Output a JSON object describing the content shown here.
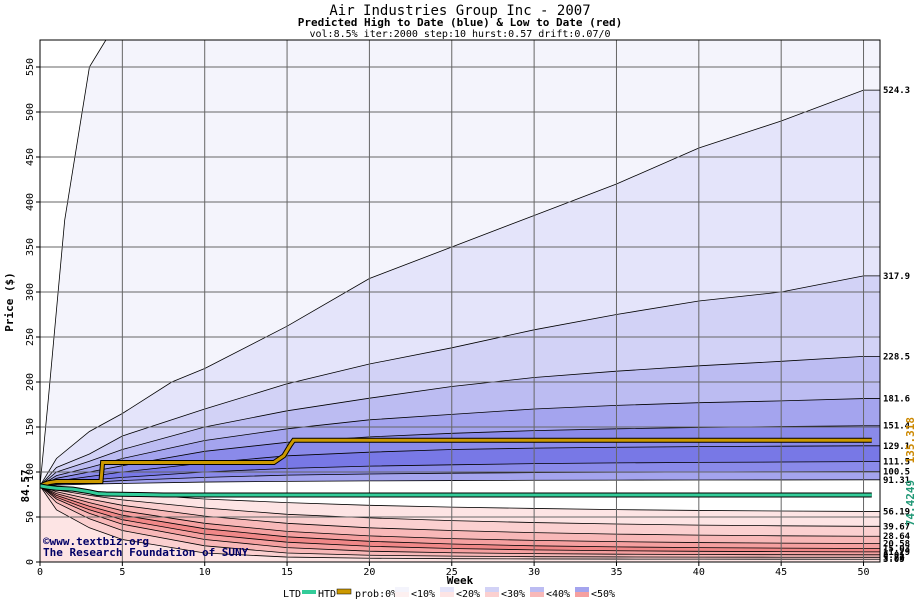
{
  "chart_data": {
    "type": "area",
    "title": "Air Industries Group Inc - 2007",
    "subtitle": "Predicted High to Date (blue) &  Low to Date (red)",
    "params": "vol:8.5% iter:2000 step:10 hurst:0.57 drift:0.07/0",
    "xlabel": "Week",
    "ylabel": "Price ($)",
    "xlim": [
      0,
      51
    ],
    "ylim": [
      0,
      580
    ],
    "xticks": [
      0,
      5,
      10,
      15,
      20,
      25,
      30,
      35,
      40,
      45,
      50
    ],
    "yticks": [
      0,
      50,
      100,
      150,
      200,
      250,
      300,
      350,
      400,
      450,
      500,
      550
    ],
    "grid": true,
    "start_price": "84.57",
    "start_value": 84.57,
    "high_bands": [
      {
        "name": "high-prob-0",
        "final": 600,
        "color": "#f4f4fc",
        "curve": [
          [
            0,
            84.57
          ],
          [
            0.5,
            180
          ],
          [
            1.5,
            380
          ],
          [
            3,
            550
          ],
          [
            4,
            580
          ],
          [
            51,
            580
          ]
        ]
      },
      {
        "name": "high-prob-10",
        "final": 524.3,
        "label": "524.3",
        "color": "#e4e4fa",
        "curve": [
          [
            0,
            84.57
          ],
          [
            1,
            115
          ],
          [
            3,
            145
          ],
          [
            5,
            165
          ],
          [
            8,
            200
          ],
          [
            10,
            215
          ],
          [
            15,
            262
          ],
          [
            20,
            315
          ],
          [
            25,
            350
          ],
          [
            30,
            385
          ],
          [
            35,
            420
          ],
          [
            40,
            460
          ],
          [
            45,
            490
          ],
          [
            50,
            524.3
          ]
        ]
      },
      {
        "name": "high-prob-20",
        "final": 317.9,
        "label": "317.9",
        "color": "#d2d2f6",
        "curve": [
          [
            0,
            84.57
          ],
          [
            1,
            105
          ],
          [
            3,
            120
          ],
          [
            5,
            140
          ],
          [
            10,
            170
          ],
          [
            15,
            198
          ],
          [
            20,
            220
          ],
          [
            25,
            238
          ],
          [
            30,
            258
          ],
          [
            35,
            275
          ],
          [
            40,
            290
          ],
          [
            45,
            300
          ],
          [
            50,
            317.9
          ]
        ]
      },
      {
        "name": "high-prob-30",
        "final": 228.5,
        "label": "228.5",
        "color": "#bcbcf2",
        "curve": [
          [
            0,
            84.57
          ],
          [
            1,
            100
          ],
          [
            3,
            112
          ],
          [
            5,
            125
          ],
          [
            10,
            150
          ],
          [
            15,
            168
          ],
          [
            20,
            182
          ],
          [
            25,
            195
          ],
          [
            30,
            205
          ],
          [
            35,
            212
          ],
          [
            40,
            218
          ],
          [
            45,
            223
          ],
          [
            50,
            228.5
          ]
        ]
      },
      {
        "name": "high-prob-40",
        "final": 181.6,
        "label": "181.6",
        "color": "#a4a4ee",
        "curve": [
          [
            0,
            84.57
          ],
          [
            1,
            96
          ],
          [
            3,
            105
          ],
          [
            5,
            115
          ],
          [
            10,
            135
          ],
          [
            15,
            148
          ],
          [
            20,
            158
          ],
          [
            25,
            164
          ],
          [
            30,
            170
          ],
          [
            35,
            174
          ],
          [
            40,
            177
          ],
          [
            45,
            179
          ],
          [
            50,
            181.6
          ]
        ]
      },
      {
        "name": "high-prob-50",
        "final": 151.4,
        "label": "151.4",
        "color": "#8a8aea",
        "curve": [
          [
            0,
            84.57
          ],
          [
            1,
            93
          ],
          [
            3,
            100
          ],
          [
            5,
            107
          ],
          [
            10,
            123
          ],
          [
            15,
            133
          ],
          [
            20,
            139
          ],
          [
            25,
            143
          ],
          [
            30,
            146
          ],
          [
            35,
            148
          ],
          [
            40,
            149.5
          ],
          [
            45,
            150.5
          ],
          [
            50,
            151.4
          ]
        ]
      },
      {
        "name": "high-prob-60",
        "final": 129.1,
        "label": "129.1",
        "color": "#7878e6",
        "curve": [
          [
            0,
            84.57
          ],
          [
            1,
            90
          ],
          [
            3,
            95
          ],
          [
            5,
            100
          ],
          [
            10,
            110
          ],
          [
            15,
            118
          ],
          [
            20,
            122
          ],
          [
            25,
            125
          ],
          [
            30,
            126.5
          ],
          [
            35,
            127.5
          ],
          [
            40,
            128.2
          ],
          [
            45,
            128.7
          ],
          [
            50,
            129.1
          ]
        ]
      },
      {
        "name": "high-prob-70",
        "final": 111.5,
        "label": "111.5",
        "color": "#8a8aea",
        "curve": [
          [
            0,
            84.57
          ],
          [
            1,
            88
          ],
          [
            3,
            91
          ],
          [
            5,
            94
          ],
          [
            10,
            100
          ],
          [
            15,
            104
          ],
          [
            20,
            106.5
          ],
          [
            25,
            108
          ],
          [
            30,
            109.3
          ],
          [
            35,
            110.1
          ],
          [
            40,
            110.7
          ],
          [
            45,
            111.1
          ],
          [
            50,
            111.5
          ]
        ]
      },
      {
        "name": "high-prob-80",
        "final": 100.5,
        "label": "100.5",
        "color": "#a4a4ee",
        "curve": [
          [
            0,
            84.57
          ],
          [
            1,
            86.5
          ],
          [
            3,
            88.5
          ],
          [
            5,
            90.5
          ],
          [
            10,
            94
          ],
          [
            15,
            96.5
          ],
          [
            20,
            97.8
          ],
          [
            25,
            98.7
          ],
          [
            30,
            99.3
          ],
          [
            35,
            99.7
          ],
          [
            40,
            100
          ],
          [
            45,
            100.3
          ],
          [
            50,
            100.5
          ]
        ]
      },
      {
        "name": "high-prob-90",
        "final": 91.31,
        "label": "91.31",
        "color": "#d2d2f6",
        "curve": [
          [
            0,
            84.57
          ],
          [
            1,
            85.5
          ],
          [
            3,
            86.5
          ],
          [
            5,
            87.3
          ],
          [
            10,
            88.8
          ],
          [
            15,
            89.6
          ],
          [
            20,
            90.1
          ],
          [
            25,
            90.5
          ],
          [
            30,
            90.8
          ],
          [
            35,
            91
          ],
          [
            40,
            91.1
          ],
          [
            45,
            91.2
          ],
          [
            50,
            91.31
          ]
        ]
      }
    ],
    "low_bands": [
      {
        "name": "low-prob-90",
        "final": 56.19,
        "label": "56.19",
        "color": "#fde4e4",
        "curve": [
          [
            0,
            84.57
          ],
          [
            1,
            82
          ],
          [
            3,
            79
          ],
          [
            5,
            76
          ],
          [
            10,
            70
          ],
          [
            15,
            66
          ],
          [
            20,
            63
          ],
          [
            25,
            61
          ],
          [
            30,
            59.5
          ],
          [
            35,
            58.2
          ],
          [
            40,
            57.3
          ],
          [
            45,
            56.7
          ],
          [
            50,
            56.19
          ]
        ]
      },
      {
        "name": "low-prob-80",
        "final": 39.67,
        "label": "39.67",
        "color": "#fbd0d0",
        "curve": [
          [
            0,
            84.57
          ],
          [
            1,
            80
          ],
          [
            3,
            74
          ],
          [
            5,
            69
          ],
          [
            10,
            60
          ],
          [
            15,
            53
          ],
          [
            20,
            49
          ],
          [
            25,
            46
          ],
          [
            30,
            43.8
          ],
          [
            35,
            42.2
          ],
          [
            40,
            41
          ],
          [
            45,
            40.2
          ],
          [
            50,
            39.67
          ]
        ]
      },
      {
        "name": "low-prob-70",
        "final": 28.64,
        "label": "28.64",
        "color": "#f8b8b8",
        "curve": [
          [
            0,
            84.57
          ],
          [
            1,
            78
          ],
          [
            3,
            70
          ],
          [
            5,
            63
          ],
          [
            10,
            51
          ],
          [
            15,
            43
          ],
          [
            20,
            38
          ],
          [
            25,
            35
          ],
          [
            30,
            32.6
          ],
          [
            35,
            31
          ],
          [
            40,
            29.9
          ],
          [
            45,
            29.1
          ],
          [
            50,
            28.64
          ]
        ]
      },
      {
        "name": "low-prob-60",
        "final": 20.58,
        "label": "20.58",
        "color": "#f5a0a0",
        "curve": [
          [
            0,
            84.57
          ],
          [
            1,
            76
          ],
          [
            3,
            66
          ],
          [
            5,
            57
          ],
          [
            10,
            43
          ],
          [
            15,
            34
          ],
          [
            20,
            29
          ],
          [
            25,
            26
          ],
          [
            30,
            24
          ],
          [
            35,
            22.6
          ],
          [
            40,
            21.6
          ],
          [
            45,
            21
          ],
          [
            50,
            20.58
          ]
        ]
      },
      {
        "name": "low-prob-50",
        "final": 15.03,
        "label": "15.03",
        "color": "#f08888",
        "curve": [
          [
            0,
            84.57
          ],
          [
            1,
            74
          ],
          [
            3,
            62
          ],
          [
            5,
            52
          ],
          [
            10,
            37
          ],
          [
            15,
            28
          ],
          [
            20,
            23
          ],
          [
            25,
            20
          ],
          [
            30,
            18
          ],
          [
            35,
            16.8
          ],
          [
            40,
            16
          ],
          [
            45,
            15.4
          ],
          [
            50,
            15.03
          ]
        ]
      },
      {
        "name": "low-prob-40",
        "final": 11.29,
        "label": "11.29",
        "color": "#f5a0a0",
        "curve": [
          [
            0,
            84.57
          ],
          [
            1,
            72
          ],
          [
            3,
            58
          ],
          [
            5,
            47
          ],
          [
            10,
            31
          ],
          [
            15,
            22
          ],
          [
            20,
            17.5
          ],
          [
            25,
            15
          ],
          [
            30,
            13.5
          ],
          [
            35,
            12.5
          ],
          [
            40,
            11.9
          ],
          [
            45,
            11.5
          ],
          [
            50,
            11.29
          ]
        ]
      },
      {
        "name": "low-prob-30",
        "final": 8.01,
        "label": "8.01",
        "color": "#f8b8b8",
        "curve": [
          [
            0,
            84.57
          ],
          [
            1,
            70
          ],
          [
            3,
            54
          ],
          [
            5,
            42
          ],
          [
            10,
            25
          ],
          [
            15,
            16
          ],
          [
            20,
            12
          ],
          [
            25,
            10.3
          ],
          [
            30,
            9.3
          ],
          [
            35,
            8.7
          ],
          [
            40,
            8.3
          ],
          [
            45,
            8.1
          ],
          [
            50,
            8.01
          ]
        ]
      },
      {
        "name": "low-prob-20",
        "final": 5.22,
        "label": "5.22",
        "color": "#fbd0d0",
        "curve": [
          [
            0,
            84.57
          ],
          [
            1,
            66
          ],
          [
            3,
            48
          ],
          [
            5,
            35
          ],
          [
            10,
            18
          ],
          [
            15,
            10
          ],
          [
            20,
            7.5
          ],
          [
            25,
            6.5
          ],
          [
            30,
            5.9
          ],
          [
            35,
            5.6
          ],
          [
            40,
            5.4
          ],
          [
            45,
            5.3
          ],
          [
            50,
            5.22
          ]
        ]
      },
      {
        "name": "low-prob-10",
        "final": 3.09,
        "label": "3.09",
        "color": "#fde4e4",
        "curve": [
          [
            0,
            84.57
          ],
          [
            1,
            58
          ],
          [
            3,
            38
          ],
          [
            5,
            25
          ],
          [
            10,
            10
          ],
          [
            15,
            5.5
          ],
          [
            20,
            4.2
          ],
          [
            25,
            3.7
          ],
          [
            30,
            3.4
          ],
          [
            35,
            3.25
          ],
          [
            40,
            3.17
          ],
          [
            45,
            3.12
          ],
          [
            50,
            3.09
          ]
        ]
      }
    ],
    "htd_series": {
      "name": "HTD",
      "label": "135.318",
      "final": 135.318,
      "color": "#cc9900",
      "points": [
        [
          0,
          84.57
        ],
        [
          0.5,
          88
        ],
        [
          1,
          89.5
        ],
        [
          2,
          89.5
        ],
        [
          3.7,
          89.5
        ],
        [
          3.8,
          110.5
        ],
        [
          14.2,
          110.5
        ],
        [
          14.8,
          118
        ],
        [
          15.2,
          130
        ],
        [
          15.4,
          135.318
        ],
        [
          50.5,
          135.318
        ]
      ]
    },
    "ltd_series": {
      "name": "LTD",
      "label": "74.4249",
      "final": 74.4249,
      "color": "#33cc99",
      "points": [
        [
          0,
          84.57
        ],
        [
          0.5,
          83
        ],
        [
          1,
          82
        ],
        [
          2,
          81
        ],
        [
          3,
          78
        ],
        [
          3.5,
          76
        ],
        [
          4,
          75.5
        ],
        [
          6,
          75
        ],
        [
          7.5,
          74.4249
        ],
        [
          50.5,
          74.4249
        ]
      ]
    },
    "right_labels": [
      "524.3",
      "317.9",
      "228.5",
      "181.6",
      "151.4",
      "129.1",
      "111.5",
      "100.5",
      "91.31",
      "56.19",
      "39.67",
      "28.64",
      "20.58",
      "15.03",
      "11.29",
      "8.01",
      "5.22",
      "3.09"
    ],
    "legend": {
      "ltd": "LTD",
      "htd": "HTD",
      "prob": "prob:0%",
      "buckets": [
        "<10%",
        "<20%",
        "<30%",
        "<40%",
        "<50%"
      ],
      "swatches": [
        {
          "top": "#f4f4fc",
          "bottom": "#fdf0f0"
        },
        {
          "top": "#e4e4fa",
          "bottom": "#fde4e4"
        },
        {
          "top": "#d2d2f6",
          "bottom": "#fbd0d0"
        },
        {
          "top": "#bcbcf2",
          "bottom": "#f8b8b8"
        },
        {
          "top": "#a4a4ee",
          "bottom": "#f5a0a0"
        },
        {
          "top": "#8a8aea",
          "bottom": "#f08888"
        }
      ]
    },
    "credit": {
      "line1": "©www.textbiz.org",
      "line2": "The Research Foundation of SUNY"
    }
  }
}
